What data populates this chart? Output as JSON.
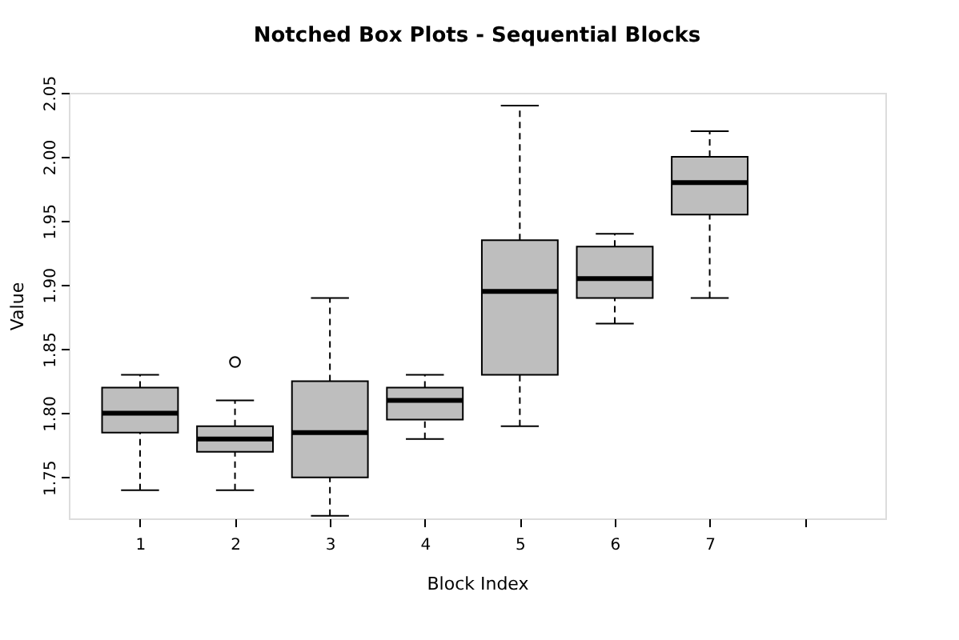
{
  "chart_data": {
    "type": "box",
    "title": "Notched Box Plots - Sequential Blocks",
    "xlabel": "Block Index",
    "ylabel": "Value",
    "x": [
      1,
      2,
      3,
      4,
      5,
      6,
      7
    ],
    "boxes": [
      {
        "low": 1.74,
        "q1": 1.785,
        "median": 1.8,
        "q3": 1.82,
        "high": 1.83
      },
      {
        "low": 1.74,
        "q1": 1.77,
        "median": 1.78,
        "q3": 1.79,
        "high": 1.81,
        "outliers": [
          1.84
        ]
      },
      {
        "low": 1.72,
        "q1": 1.75,
        "median": 1.785,
        "q3": 1.825,
        "high": 1.89
      },
      {
        "low": 1.78,
        "q1": 1.795,
        "median": 1.81,
        "q3": 1.82,
        "high": 1.83
      },
      {
        "low": 1.79,
        "q1": 1.83,
        "median": 1.895,
        "q3": 1.935,
        "high": 2.04
      },
      {
        "low": 1.87,
        "q1": 1.89,
        "median": 1.905,
        "q3": 1.93,
        "high": 1.94
      },
      {
        "low": 1.89,
        "q1": 1.955,
        "median": 1.98,
        "q3": 2.0,
        "high": 2.02
      }
    ],
    "color": "#bebebe",
    "xlim": [
      0.25,
      8.85
    ],
    "xticks": [
      1,
      2,
      3,
      4,
      5,
      6,
      7,
      {
        "value": 8,
        "label": null
      }
    ],
    "ylim": [
      1.718,
      2.05
    ],
    "yticks": [
      1.75,
      {
        "value": 1.8,
        "label": "1.80"
      },
      1.85,
      {
        "value": 1.9,
        "label": "1.90"
      },
      1.95,
      {
        "value": 2.0,
        "label": "2.00"
      },
      2.05
    ],
    "grid": false
  }
}
